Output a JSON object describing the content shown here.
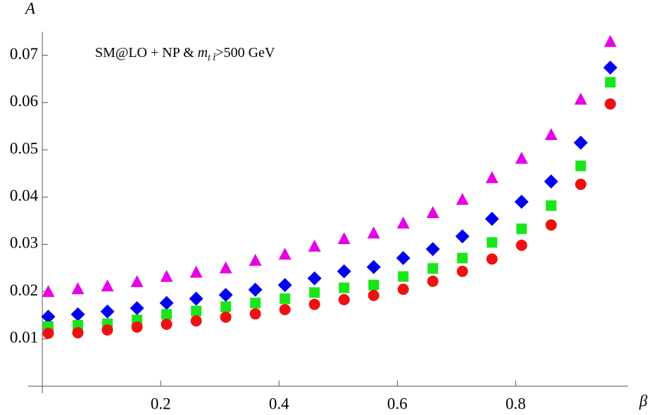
{
  "chart_data": {
    "type": "scatter",
    "ylabel": "A",
    "xlabel": "β",
    "annotation": {
      "prefix": "SM@LO + NP & ",
      "symbol": "m",
      "subscript": "t t̄",
      "suffix": ">500 GeV"
    },
    "x": [
      0.01,
      0.06,
      0.11,
      0.16,
      0.21,
      0.26,
      0.31,
      0.36,
      0.41,
      0.46,
      0.51,
      0.56,
      0.61,
      0.66,
      0.71,
      0.76,
      0.81,
      0.86,
      0.91,
      0.96
    ],
    "series": [
      {
        "color": "#e600e6",
        "marker": "triangle",
        "values": [
          0.0199,
          0.0205,
          0.0211,
          0.022,
          0.0231,
          0.024,
          0.0249,
          0.0265,
          0.0278,
          0.0295,
          0.0311,
          0.0323,
          0.0344,
          0.0366,
          0.0394,
          0.044,
          0.0481,
          0.0531,
          0.0606,
          0.0728
        ]
      },
      {
        "color": "#0000ee",
        "marker": "diamond",
        "values": [
          0.0147,
          0.0152,
          0.0158,
          0.0165,
          0.0176,
          0.0185,
          0.0193,
          0.0204,
          0.0214,
          0.0228,
          0.0243,
          0.0252,
          0.0271,
          0.029,
          0.0317,
          0.0354,
          0.039,
          0.0433,
          0.0515,
          0.0674
        ]
      },
      {
        "color": "#19e619",
        "marker": "square",
        "values": [
          0.0126,
          0.0129,
          0.0132,
          0.014,
          0.0152,
          0.0159,
          0.0168,
          0.0176,
          0.0185,
          0.0198,
          0.0208,
          0.0214,
          0.0232,
          0.0249,
          0.0271,
          0.0304,
          0.0333,
          0.0382,
          0.0466,
          0.0643
        ]
      },
      {
        "color": "#ee1111",
        "marker": "circle",
        "values": [
          0.0112,
          0.0113,
          0.0119,
          0.0125,
          0.0131,
          0.0138,
          0.0146,
          0.0153,
          0.0162,
          0.0173,
          0.0183,
          0.0192,
          0.0205,
          0.0222,
          0.0243,
          0.0269,
          0.0298,
          0.0341,
          0.0427,
          0.0597
        ]
      }
    ],
    "xlim": [
      -0.024,
      0.99
    ],
    "ylim": [
      0,
      0.075
    ],
    "xticks": [
      0.2,
      0.4,
      0.6,
      0.8
    ],
    "yticks": [
      0.01,
      0.02,
      0.03,
      0.04,
      0.05,
      0.06,
      0.07
    ],
    "grid": false
  }
}
